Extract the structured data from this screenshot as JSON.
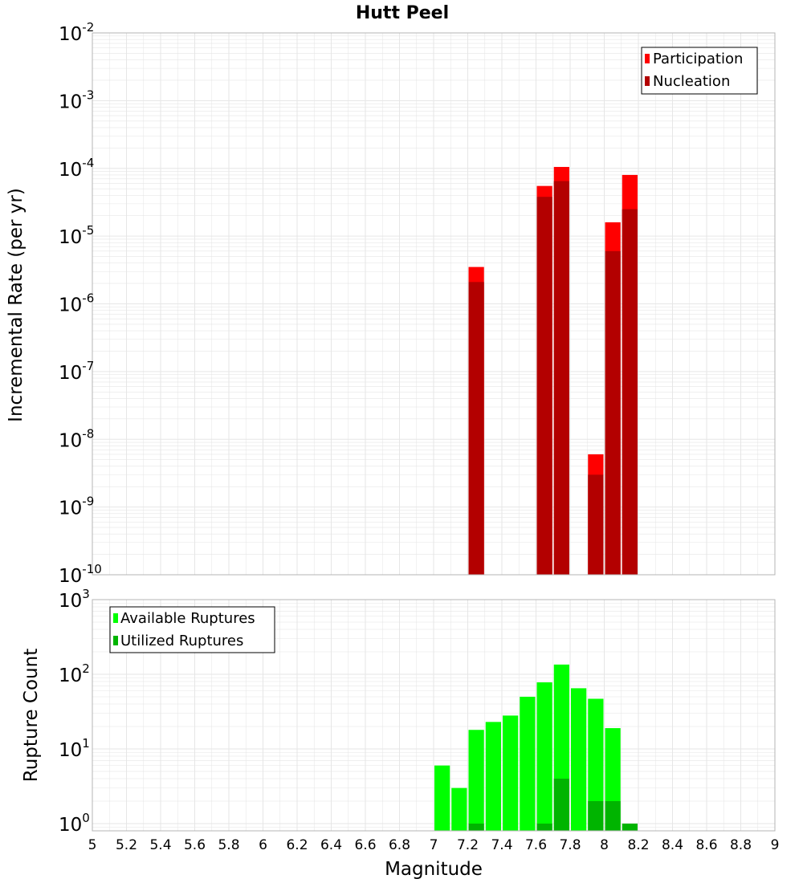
{
  "title": "Hutt Peel",
  "colors": {
    "participation": "#ff0000",
    "nucleation": "#b30000",
    "available": "#00ff00",
    "utilized": "#00b400",
    "grid": "#e6e6e6",
    "frame": "#b4b4b4"
  },
  "chart_data": [
    {
      "type": "bar",
      "title": "Hutt Peel",
      "xlabel": "",
      "ylabel": "Incremental Rate (per yr)",
      "yscale": "log",
      "ylim": [
        1e-10,
        0.01
      ],
      "xlim": [
        5,
        9
      ],
      "grid": true,
      "legend_position": "top-right",
      "ytick_exponents": [
        "-2",
        "-3",
        "-4",
        "-5",
        "-6",
        "-7",
        "-8",
        "-9",
        "-10"
      ],
      "ytick_base": "10",
      "bar_width": 0.1,
      "series": [
        {
          "name": "Participation",
          "color": "#ff0000",
          "x": [
            7.25,
            7.65,
            7.75,
            7.95,
            8.05,
            8.15
          ],
          "values": [
            3.5e-06,
            5.5e-05,
            0.000105,
            6e-09,
            1.6e-05,
            8e-05
          ]
        },
        {
          "name": "Nucleation",
          "color": "#b30000",
          "x": [
            7.25,
            7.65,
            7.75,
            7.95,
            8.05,
            8.15
          ],
          "values": [
            2.1e-06,
            3.8e-05,
            6.5e-05,
            3e-09,
            6e-06,
            2.5e-05
          ]
        }
      ]
    },
    {
      "type": "bar",
      "xlabel": "Magnitude",
      "ylabel": "Rupture Count",
      "yscale": "log",
      "ylim": [
        0.8,
        1000
      ],
      "xlim": [
        5,
        9
      ],
      "grid": true,
      "legend_position": "top-left",
      "ytick_exponents": [
        "3",
        "2",
        "1",
        "0"
      ],
      "ytick_base": "10",
      "xticks": [
        "5",
        "5.2",
        "5.4",
        "5.6",
        "5.8",
        "6",
        "6.2",
        "6.4",
        "6.6",
        "6.8",
        "7",
        "7.2",
        "7.4",
        "7.6",
        "7.8",
        "8",
        "8.2",
        "8.4",
        "8.6",
        "8.8",
        "9"
      ],
      "bar_width": 0.1,
      "series": [
        {
          "name": "Available Ruptures",
          "color": "#00ff00",
          "x": [
            7.05,
            7.15,
            7.25,
            7.35,
            7.45,
            7.55,
            7.65,
            7.75,
            7.85,
            7.95,
            8.05
          ],
          "values": [
            6,
            3,
            18,
            23,
            28,
            50,
            78,
            135,
            65,
            47,
            19
          ]
        },
        {
          "name": "Utilized Ruptures",
          "color": "#00b400",
          "x": [
            7.25,
            7.65,
            7.75,
            7.95,
            8.05,
            8.15
          ],
          "values": [
            1,
            1,
            4,
            2,
            2,
            1
          ]
        }
      ]
    }
  ]
}
